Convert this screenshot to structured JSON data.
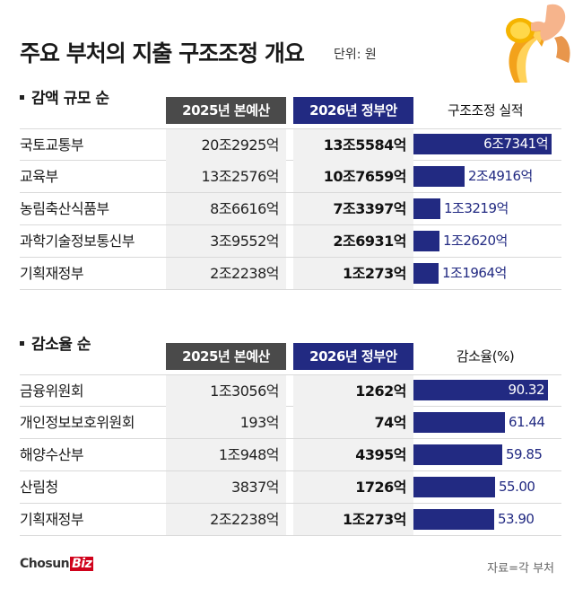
{
  "title": "주요 부처의 지출 구조조정 개요",
  "unit": "단위: 원",
  "source": "자료=각 부처",
  "logo": {
    "main": "Chosun",
    "accent": "Biz"
  },
  "colors": {
    "navy": "#222a82",
    "gray": "#4a4a4a"
  },
  "chart_data": [
    {
      "type": "table",
      "title": "감액 규모 순",
      "columns": [
        "2025년 본예산",
        "2026년 정부안",
        "구조조정 실적"
      ],
      "categories": [
        "국토교통부",
        "교육부",
        "농림축산식품부",
        "과학기술정보통신부",
        "기획재정부"
      ],
      "budget_2025": [
        "20조2925억",
        "13조2576억",
        "8조6616억",
        "3조9552억",
        "2조2238억"
      ],
      "budget_2026": [
        "13조5584억",
        "10조7659억",
        "7조3397억",
        "2조6931억",
        "1조273억"
      ],
      "cut_labels": [
        "6조7341억",
        "2조4916억",
        "1조3219억",
        "1조2620억",
        "1조1964억"
      ],
      "cut_values_eok": [
        67341,
        24916,
        13219,
        12620,
        11964
      ]
    },
    {
      "type": "table",
      "title": "감소율 순",
      "columns": [
        "2025년 본예산",
        "2026년 정부안",
        "감소율(%)"
      ],
      "categories": [
        "금융위원회",
        "개인정보보호위원회",
        "해양수산부",
        "산림청",
        "기획재정부"
      ],
      "budget_2025": [
        "1조3056억",
        "193억",
        "1조948억",
        "3837억",
        "2조2238억"
      ],
      "budget_2026": [
        "1262억",
        "74억",
        "4395억",
        "1726억",
        "1조273억"
      ],
      "rate_labels": [
        "90.32",
        "61.44",
        "59.85",
        "55.00",
        "53.90"
      ],
      "rate_values": [
        90.32,
        61.44,
        59.85,
        55.0,
        53.9
      ]
    }
  ]
}
